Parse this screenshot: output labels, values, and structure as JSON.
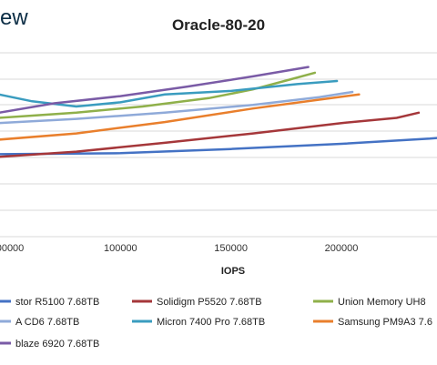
{
  "brand": {
    "logo_fragment": "ew"
  },
  "chart_data": {
    "type": "line",
    "title": "Oracle-80-20",
    "xlabel": "IOPS",
    "x_ticks": [
      "00000",
      "100000",
      "150000",
      "200000"
    ],
    "grid": true,
    "legend_position": "bottom",
    "series": [
      {
        "name": "stor R5100 7.68TB",
        "color": "#4472c4",
        "points": [
          [
            45000,
            2.2
          ],
          [
            100000,
            2.18
          ],
          [
            150000,
            2.1
          ],
          [
            200000,
            2.0
          ],
          [
            240000,
            1.9
          ],
          [
            245000,
            1.88
          ]
        ]
      },
      {
        "name": "Solidigm P5520 7.68TB",
        "color": "#a5373a",
        "points": [
          [
            45000,
            2.25
          ],
          [
            80000,
            2.15
          ],
          [
            120000,
            1.98
          ],
          [
            160000,
            1.8
          ],
          [
            200000,
            1.6
          ],
          [
            225000,
            1.5
          ],
          [
            235000,
            1.4
          ]
        ]
      },
      {
        "name": "Union Memory UH8",
        "color": "#8fb04a",
        "points": [
          [
            45000,
            1.5
          ],
          [
            80000,
            1.4
          ],
          [
            110000,
            1.28
          ],
          [
            140000,
            1.12
          ],
          [
            160000,
            0.95
          ],
          [
            175000,
            0.78
          ],
          [
            188000,
            0.63
          ]
        ]
      },
      {
        "name": "A CD6 7.68TB",
        "color": "#8faad9",
        "points": [
          [
            45000,
            1.6
          ],
          [
            80000,
            1.52
          ],
          [
            120000,
            1.4
          ],
          [
            160000,
            1.25
          ],
          [
            190000,
            1.1
          ],
          [
            205000,
            1.0
          ]
        ]
      },
      {
        "name": "Micron 7400 Pro 7.68TB",
        "color": "#3a9cbf",
        "points": [
          [
            45000,
            1.05
          ],
          [
            60000,
            1.18
          ],
          [
            80000,
            1.28
          ],
          [
            100000,
            1.2
          ],
          [
            120000,
            1.05
          ],
          [
            150000,
            0.98
          ],
          [
            180000,
            0.85
          ],
          [
            198000,
            0.79
          ]
        ]
      },
      {
        "name": "Samsung PM9A3 7.6",
        "color": "#e97f2c",
        "points": [
          [
            45000,
            1.92
          ],
          [
            80000,
            1.8
          ],
          [
            120000,
            1.58
          ],
          [
            160000,
            1.32
          ],
          [
            190000,
            1.15
          ],
          [
            208000,
            1.05
          ]
        ]
      },
      {
        "name": "blaze 6920 7.68TB",
        "color": "#7a5ba6",
        "points": [
          [
            45000,
            1.4
          ],
          [
            70000,
            1.22
          ],
          [
            100000,
            1.08
          ],
          [
            130000,
            0.9
          ],
          [
            160000,
            0.7
          ],
          [
            185000,
            0.52
          ]
        ]
      }
    ]
  }
}
